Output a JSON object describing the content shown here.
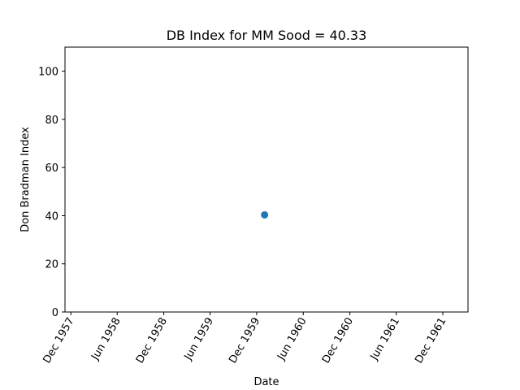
{
  "chart_data": {
    "type": "scatter",
    "title": "DB Index for MM Sood = 40.33",
    "xlabel": "Date",
    "ylabel": "Don Bradman Index",
    "x_ticks": [
      "Dec 1957",
      "Jun 1958",
      "Dec 1958",
      "Jun 1959",
      "Dec 1959",
      "Jun 1960",
      "Dec 1960",
      "Jun 1961",
      "Dec 1961"
    ],
    "y_ticks": [
      0,
      20,
      40,
      60,
      80,
      100
    ],
    "ylim": [
      0,
      110
    ],
    "xlim": [
      "1957-11-08",
      "1962-03-10"
    ],
    "grid": false,
    "points": [
      {
        "x": "1960-01-01",
        "y": 40.33
      }
    ],
    "colors": {
      "point": "#1f77b4",
      "axes": "#000000",
      "background": "#ffffff"
    }
  }
}
